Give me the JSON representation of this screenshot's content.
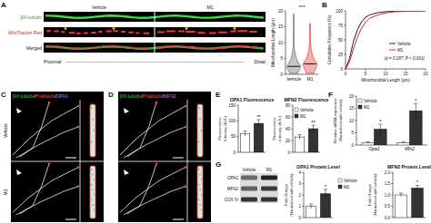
{
  "panels": {
    "A": {
      "label": "A",
      "conditions": [
        "Vehicle",
        "M1"
      ],
      "channels": [
        "βIII-tubulin",
        "MitoTracker Red",
        "Merged"
      ],
      "ends": [
        "Proximal",
        "Distal"
      ]
    },
    "C": {
      "label": "C",
      "stains": [
        "βIII-tubulin",
        "/",
        "Phalloidin",
        "/",
        "OPA1"
      ],
      "rows": [
        "Vehicle",
        "M1"
      ]
    },
    "D": {
      "label": "D",
      "stains": [
        "βIII-tubulin",
        "/",
        "Phalloidin",
        "/",
        "MFN2"
      ]
    },
    "G": {
      "label": "G",
      "columns": [
        "Vehicle",
        "M1"
      ],
      "rows": [
        "OPA1",
        "MFN2",
        "COX IV"
      ]
    }
  },
  "chart_data": [
    {
      "type": "violin",
      "categories": [
        "Vehicle",
        "M1"
      ],
      "values": [
        2.5,
        3.3
      ],
      "ranges": [
        [
          0.3,
          19
        ],
        [
          0.3,
          16
        ]
      ],
      "colors": [
        "#555555",
        "#e02020"
      ],
      "ylabel": "Mitochondrial Length (μm)",
      "ylim": [
        0,
        20
      ],
      "yticks": [
        0,
        5,
        10,
        15,
        20
      ],
      "annotations": [
        "***"
      ]
    },
    {
      "type": "line",
      "label": "B",
      "x": [
        0,
        1,
        2,
        3,
        4,
        5,
        6,
        8,
        10,
        12,
        15,
        20
      ],
      "series": [
        {
          "name": "Vehicle",
          "color": "#222222",
          "values": [
            0,
            18,
            48,
            68,
            81,
            89,
            93,
            97,
            98.5,
            99.3,
            99.8,
            100
          ]
        },
        {
          "name": "M1",
          "color": "#e02020",
          "values": [
            0,
            12,
            35,
            55,
            70,
            80,
            87,
            93,
            96.5,
            98.3,
            99.5,
            100
          ]
        }
      ],
      "xlabel": "Mitochondrial Length (μm)",
      "ylabel": "Cumulative Frequency (%)",
      "xlim": [
        0,
        20
      ],
      "xticks": [
        0,
        5,
        10,
        15,
        20
      ],
      "ylim": [
        0,
        100
      ],
      "yticks": [
        0,
        25,
        50,
        75,
        100
      ],
      "legend": "lower-right",
      "annotations": [
        "(d = 0.187, P < 0.001)"
      ]
    },
    {
      "type": "bar",
      "label": "E",
      "title": "OPA1 Fluorescence",
      "categories": [
        null,
        null
      ],
      "values": [
        60,
        92
      ],
      "errors": [
        8,
        12
      ],
      "colors": [
        "#ffffff",
        "#333333"
      ],
      "ylabel": [
        "Fluorescence",
        "Intensity (A.U.)"
      ],
      "ylim": [
        0,
        150
      ],
      "yticks": [
        0,
        50,
        100,
        150
      ],
      "tick_labels": "y",
      "annotations": [
        "**"
      ]
    },
    {
      "type": "bar",
      "title": "MFN2 Fluorescence",
      "categories": [
        "Vehicle",
        "M1"
      ],
      "values": [
        26,
        40
      ],
      "errors": [
        4,
        6
      ],
      "colors": [
        "#ffffff",
        "#333333"
      ],
      "ylabel": [
        "Fluorescence",
        "Intensity (A.U.)"
      ],
      "ylim": [
        0,
        80
      ],
      "yticks": [
        0,
        20,
        40,
        60,
        80
      ],
      "tick_labels": "y",
      "legend": "top-left",
      "annotations": [
        "**"
      ]
    },
    {
      "type": "bar",
      "label": "F",
      "categories": [
        "Opa1",
        "Mfn2"
      ],
      "series": [
        {
          "name": "Vehicle",
          "color": "#ffffff",
          "values": [
            1,
            1
          ],
          "errors": [
            0.3,
            0.3
          ]
        },
        {
          "name": "M1",
          "color": "#333333",
          "values": [
            6.5,
            14
          ],
          "errors": [
            2,
            3
          ]
        }
      ],
      "ylabel": [
        "Relative mRNA expression",
        "(Normalized with vehicle)"
      ],
      "ylim": [
        0,
        20
      ],
      "yticks": [
        0,
        5,
        10,
        15,
        20
      ],
      "legend": "top-left",
      "annotations": [
        "*",
        "*"
      ]
    },
    {
      "type": "bar",
      "title": "OPA1 Protein Level",
      "categories": [
        "Vehicle",
        "M1"
      ],
      "values": [
        1,
        2.1
      ],
      "errors": [
        0.2,
        0.4
      ],
      "colors": [
        "#ffffff",
        "#333333"
      ],
      "ylabel": [
        "Fold Change",
        "(Normalized with vehicle)"
      ],
      "ylim": [
        0,
        4
      ],
      "yticks": [
        0,
        1,
        2,
        3,
        4
      ],
      "tick_labels": "y",
      "legend": "right",
      "annotations": [
        "*"
      ]
    },
    {
      "type": "bar",
      "title": "MFN2 Protein Level",
      "categories": [
        null,
        null
      ],
      "values": [
        1,
        1.3
      ],
      "errors": [
        0.08,
        0.12
      ],
      "colors": [
        "#ffffff",
        "#333333"
      ],
      "ylabel": [
        "Fold Change",
        "(Normalized with vehicle)"
      ],
      "ylim": [
        0,
        2
      ],
      "yticks": [
        {
          "value": 0,
          "label": "0.0"
        },
        0.5,
        {
          "value": 1,
          "label": "1.0"
        },
        1.5,
        {
          "value": 2,
          "label": "2.0"
        }
      ],
      "tick_labels": "y",
      "annotations": [
        "*"
      ]
    }
  ]
}
